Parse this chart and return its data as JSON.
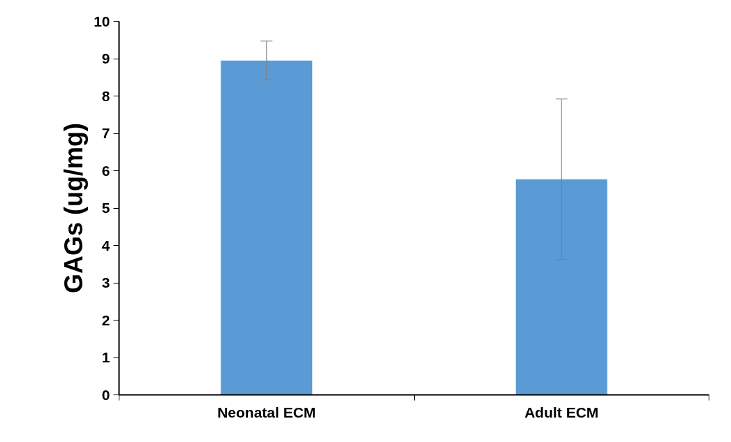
{
  "chart_data": {
    "type": "bar",
    "ylabel": "GAGs (ug/mg)",
    "categories": [
      "Neonatal ECM",
      "Adult ECM"
    ],
    "values": [
      8.95,
      5.77
    ],
    "errors": [
      0.52,
      2.15
    ],
    "color": "#5b9bd5",
    "ylim": [
      0,
      10
    ],
    "yticks": [
      0,
      1,
      2,
      3,
      4,
      5,
      6,
      7,
      8,
      9,
      10
    ],
    "grid": false
  }
}
